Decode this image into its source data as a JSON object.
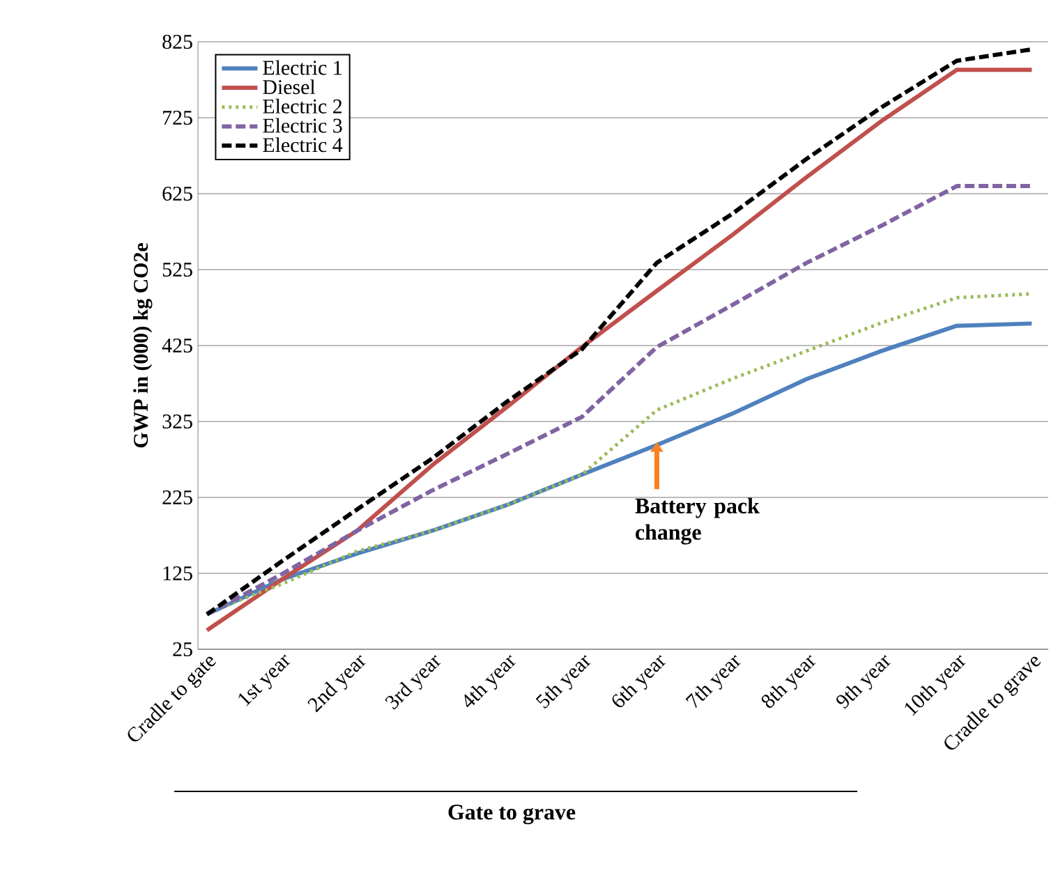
{
  "chart_data": {
    "type": "line",
    "ylabel": "GWP in (000) kg CO2e",
    "categories": [
      "Cradle to gate",
      "1st year",
      "2nd year",
      "3rd year",
      "4th year",
      "5th year",
      "6th year",
      "7th year",
      "8th year",
      "9th year",
      "10th year",
      "Cradle to grave"
    ],
    "series": [
      {
        "name": "Electric 1",
        "color": "#4f81bd",
        "line_style": "solid",
        "values": [
          71,
          117,
          151,
          181,
          215,
          255,
          294,
          335,
          381,
          418,
          451,
          454
        ]
      },
      {
        "name": "Diesel",
        "color": "#c0504d",
        "line_style": "solid",
        "values": [
          50,
          117,
          181,
          267,
          344,
          423,
          497,
          570,
          647,
          721,
          788,
          788
        ]
      },
      {
        "name": "Electric 2",
        "color": "#9bbb59",
        "line_style": "dotted",
        "values": [
          73,
          111,
          154,
          181,
          215,
          255,
          340,
          381,
          418,
          455,
          488,
          493
        ]
      },
      {
        "name": "Electric 3",
        "color": "#8064a2",
        "line_style": "dashed",
        "values": [
          71,
          124,
          181,
          234,
          282,
          331,
          423,
          478,
          534,
          583,
          635,
          635
        ]
      },
      {
        "name": "Electric 4",
        "color": "#000000",
        "line_style": "dashed",
        "values": [
          71,
          141,
          209,
          276,
          351,
          420,
          534,
          598,
          671,
          739,
          800,
          815
        ]
      }
    ],
    "ylim": [
      25,
      825
    ],
    "yticks": [
      25,
      125,
      225,
      325,
      425,
      525,
      625,
      725,
      825
    ],
    "grid": "y",
    "legend": "top left",
    "annotations": [
      {
        "text": "Battery pack change",
        "x": "6th year",
        "y": 298
      },
      "Gate to grave"
    ]
  }
}
